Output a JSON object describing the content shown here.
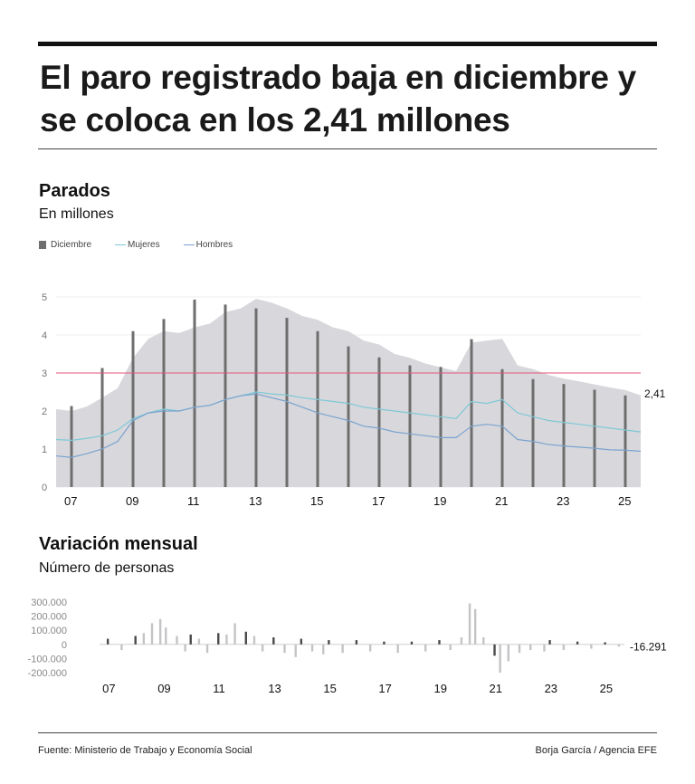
{
  "headline": "El paro registrado baja en diciembre y se coloca en los 2,41 millones",
  "chart1": {
    "title": "Parados",
    "subtitle": "En millones",
    "legend": [
      {
        "label": "Diciembre",
        "color": "#6e6e6e",
        "kind": "bar"
      },
      {
        "label": "Mujeres",
        "color": "#7ec8d6",
        "kind": "line"
      },
      {
        "label": "Hombres",
        "color": "#7aa3cf",
        "kind": "line"
      }
    ],
    "end_label": "2,41"
  },
  "chart2": {
    "title": "Variación mensual",
    "subtitle": "Número de personas",
    "end_label": "-16.291"
  },
  "footer": {
    "source": "Fuente: Ministerio de Trabajo y Economía Social",
    "credit": "Borja García / Agencia EFE"
  },
  "colors": {
    "area": "#d8d8dc",
    "december_bar": "#6e6e6e",
    "reference_line": "#e0567a",
    "monthly_bar": "#c4c4c8",
    "monthly_december_bar": "#4a4a4a"
  },
  "chart_data": [
    {
      "type": "area",
      "title": "Parados",
      "subtitle": "En millones",
      "ylim": [
        0,
        5
      ],
      "yticks": [
        0,
        1,
        2,
        3,
        4,
        5
      ],
      "x_tick_labels": [
        "07",
        "09",
        "11",
        "13",
        "15",
        "17",
        "19",
        "21",
        "23",
        "25"
      ],
      "reference_line": 3,
      "last_value_label": "2,41",
      "series": [
        {
          "name": "Parados",
          "x": [
            2006.5,
            2007,
            2007.5,
            2008,
            2008.5,
            2009,
            2009.5,
            2010,
            2010.5,
            2011,
            2011.5,
            2012,
            2012.5,
            2013,
            2013.5,
            2014,
            2014.5,
            2015,
            2015.5,
            2016,
            2016.5,
            2017,
            2017.5,
            2018,
            2018.5,
            2019,
            2019.5,
            2020,
            2020.5,
            2021,
            2021.5,
            2022,
            2022.5,
            2023,
            2023.5,
            2024,
            2024.5,
            2025,
            2025.5
          ],
          "values": [
            2.05,
            2.0,
            2.12,
            2.35,
            2.6,
            3.4,
            3.9,
            4.1,
            4.05,
            4.2,
            4.3,
            4.6,
            4.7,
            4.95,
            4.85,
            4.7,
            4.5,
            4.4,
            4.2,
            4.1,
            3.85,
            3.75,
            3.5,
            3.4,
            3.25,
            3.15,
            3.05,
            3.8,
            3.85,
            3.9,
            3.2,
            3.1,
            2.95,
            2.85,
            2.78,
            2.7,
            2.62,
            2.55,
            2.41
          ]
        },
        {
          "name": "Mujeres",
          "x": [
            2006.5,
            2007,
            2007.5,
            2008,
            2008.5,
            2009,
            2009.5,
            2010,
            2010.5,
            2011,
            2011.5,
            2012,
            2012.5,
            2013,
            2013.5,
            2014,
            2014.5,
            2015,
            2015.5,
            2016,
            2016.5,
            2017,
            2017.5,
            2018,
            2018.5,
            2019,
            2019.5,
            2020,
            2020.5,
            2021,
            2021.5,
            2022,
            2022.5,
            2023,
            2023.5,
            2024,
            2024.5,
            2025,
            2025.5
          ],
          "values": [
            1.25,
            1.23,
            1.28,
            1.35,
            1.5,
            1.8,
            1.95,
            2.05,
            2.0,
            2.1,
            2.15,
            2.3,
            2.4,
            2.5,
            2.45,
            2.42,
            2.35,
            2.3,
            2.25,
            2.2,
            2.1,
            2.05,
            2.0,
            1.95,
            1.9,
            1.85,
            1.8,
            2.25,
            2.2,
            2.3,
            1.95,
            1.85,
            1.75,
            1.7,
            1.65,
            1.6,
            1.55,
            1.5,
            1.45
          ]
        },
        {
          "name": "Hombres",
          "x": [
            2006.5,
            2007,
            2007.5,
            2008,
            2008.5,
            2009,
            2009.5,
            2010,
            2010.5,
            2011,
            2011.5,
            2012,
            2012.5,
            2013,
            2013.5,
            2014,
            2014.5,
            2015,
            2015.5,
            2016,
            2016.5,
            2017,
            2017.5,
            2018,
            2018.5,
            2019,
            2019.5,
            2020,
            2020.5,
            2021,
            2021.5,
            2022,
            2022.5,
            2023,
            2023.5,
            2024,
            2024.5,
            2025,
            2025.5
          ],
          "values": [
            0.82,
            0.78,
            0.88,
            1.0,
            1.2,
            1.75,
            1.95,
            2.0,
            2.0,
            2.1,
            2.15,
            2.3,
            2.4,
            2.45,
            2.35,
            2.25,
            2.1,
            1.95,
            1.85,
            1.75,
            1.6,
            1.55,
            1.45,
            1.4,
            1.35,
            1.3,
            1.3,
            1.6,
            1.65,
            1.6,
            1.25,
            1.2,
            1.12,
            1.08,
            1.05,
            1.02,
            0.98,
            0.97,
            0.94
          ]
        }
      ],
      "december_bars": {
        "x": [
          2007,
          2008,
          2009,
          2010,
          2011,
          2012,
          2013,
          2014,
          2015,
          2016,
          2017,
          2018,
          2019,
          2020,
          2021,
          2022,
          2023,
          2024,
          2025
        ],
        "values": [
          2.13,
          3.13,
          4.1,
          4.42,
          4.93,
          4.8,
          4.7,
          4.45,
          4.1,
          3.7,
          3.41,
          3.2,
          3.16,
          3.89,
          3.1,
          2.84,
          2.71,
          2.56,
          2.41
        ]
      }
    },
    {
      "type": "bar",
      "title": "Variación mensual",
      "subtitle": "Número de personas",
      "ylim": [
        -200000,
        300000
      ],
      "yticks": [
        -200000,
        -100000,
        0,
        100000,
        200000,
        300000
      ],
      "ytick_labels": [
        "-200.000",
        "-100.000",
        "0",
        "100.000",
        "200.000",
        "300.000"
      ],
      "x_tick_labels": [
        "07",
        "09",
        "11",
        "13",
        "15",
        "17",
        "19",
        "21",
        "23",
        "25"
      ],
      "last_value": -16291,
      "last_value_label": "-16.291",
      "x": [
        2007.0,
        2007.5,
        2008.0,
        2008.3,
        2008.6,
        2008.9,
        2009.1,
        2009.5,
        2009.8,
        2010.0,
        2010.3,
        2010.6,
        2011.0,
        2011.3,
        2011.6,
        2012.0,
        2012.3,
        2012.6,
        2013.0,
        2013.4,
        2013.8,
        2014.0,
        2014.4,
        2014.8,
        2015.0,
        2015.5,
        2016.0,
        2016.5,
        2017.0,
        2017.5,
        2018.0,
        2018.5,
        2019.0,
        2019.4,
        2019.8,
        2020.1,
        2020.3,
        2020.6,
        2021.0,
        2021.2,
        2021.5,
        2021.9,
        2022.3,
        2022.8,
        2023.0,
        2023.5,
        2024.0,
        2024.5,
        2025.0,
        2025.5
      ],
      "values": [
        40000,
        -40000,
        60000,
        80000,
        150000,
        180000,
        120000,
        60000,
        -50000,
        70000,
        40000,
        -60000,
        80000,
        70000,
        150000,
        90000,
        60000,
        -50000,
        50000,
        -60000,
        -90000,
        40000,
        -50000,
        -70000,
        30000,
        -60000,
        30000,
        -50000,
        20000,
        -60000,
        20000,
        -50000,
        30000,
        -40000,
        50000,
        290000,
        250000,
        50000,
        -80000,
        -200000,
        -120000,
        -60000,
        -40000,
        -50000,
        30000,
        -40000,
        20000,
        -30000,
        15000,
        -16291
      ]
    }
  ]
}
